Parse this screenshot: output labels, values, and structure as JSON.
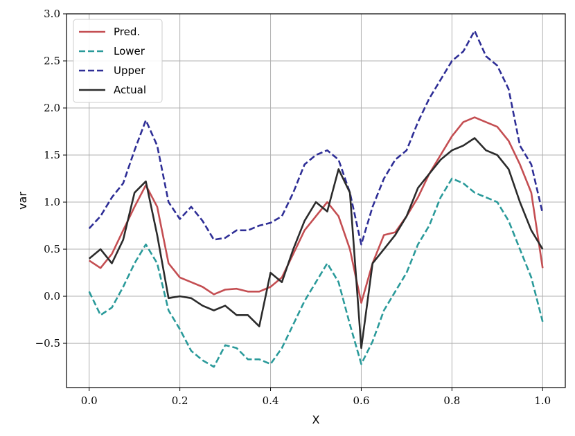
{
  "chart_data": {
    "type": "line",
    "title": "",
    "xlabel": "X",
    "ylabel": "var",
    "xlim": [
      -0.05,
      1.05
    ],
    "ylim": [
      -0.97,
      3.0
    ],
    "xticks": [
      0.0,
      0.2,
      0.4,
      0.6,
      0.8,
      1.0
    ],
    "xtick_labels": [
      "0.0",
      "0.2",
      "0.4",
      "0.6",
      "0.8",
      "1.0"
    ],
    "yticks": [
      -0.5,
      0.0,
      0.5,
      1.0,
      1.5,
      2.0,
      2.5,
      3.0
    ],
    "ytick_labels": [
      "−0.5",
      "0.0",
      "0.5",
      "1.0",
      "1.5",
      "2.0",
      "2.5",
      "3.0"
    ],
    "grid": true,
    "legend_position": "top-left",
    "x": [
      0.0,
      0.025,
      0.05,
      0.075,
      0.1,
      0.125,
      0.15,
      0.175,
      0.2,
      0.225,
      0.25,
      0.275,
      0.3,
      0.325,
      0.35,
      0.375,
      0.4,
      0.425,
      0.45,
      0.475,
      0.5,
      0.525,
      0.55,
      0.575,
      0.6,
      0.625,
      0.65,
      0.675,
      0.7,
      0.725,
      0.75,
      0.775,
      0.8,
      0.825,
      0.85,
      0.875,
      0.9,
      0.925,
      0.95,
      0.975,
      1.0
    ],
    "series": [
      {
        "name": "Pred.",
        "color": "#c44e52",
        "style": "solid",
        "values": [
          0.38,
          0.3,
          0.45,
          0.7,
          0.95,
          1.18,
          0.95,
          0.35,
          0.2,
          0.15,
          0.1,
          0.02,
          0.07,
          0.08,
          0.05,
          0.05,
          0.1,
          0.2,
          0.45,
          0.7,
          0.85,
          1.0,
          0.85,
          0.5,
          -0.07,
          0.35,
          0.65,
          0.68,
          0.85,
          1.05,
          1.3,
          1.5,
          1.7,
          1.85,
          1.9,
          1.85,
          1.8,
          1.65,
          1.4,
          1.1,
          0.3
        ]
      },
      {
        "name": "Lower",
        "color": "#2a9a9a",
        "style": "dashed",
        "values": [
          0.05,
          -0.2,
          -0.12,
          0.1,
          0.35,
          0.55,
          0.35,
          -0.15,
          -0.35,
          -0.58,
          -0.68,
          -0.75,
          -0.52,
          -0.55,
          -0.67,
          -0.67,
          -0.72,
          -0.55,
          -0.3,
          -0.05,
          0.15,
          0.35,
          0.15,
          -0.3,
          -0.72,
          -0.48,
          -0.15,
          0.05,
          0.25,
          0.55,
          0.75,
          1.05,
          1.25,
          1.2,
          1.1,
          1.05,
          1.0,
          0.8,
          0.5,
          0.2,
          -0.27
        ]
      },
      {
        "name": "Upper",
        "color": "#2e2e96",
        "style": "dashed",
        "values": [
          0.72,
          0.85,
          1.05,
          1.2,
          1.55,
          1.87,
          1.6,
          1.0,
          0.82,
          0.95,
          0.8,
          0.6,
          0.62,
          0.7,
          0.7,
          0.75,
          0.78,
          0.85,
          1.1,
          1.4,
          1.5,
          1.55,
          1.45,
          1.1,
          0.55,
          0.95,
          1.25,
          1.45,
          1.55,
          1.85,
          2.1,
          2.3,
          2.5,
          2.6,
          2.82,
          2.55,
          2.45,
          2.2,
          1.6,
          1.4,
          0.88
        ]
      },
      {
        "name": "Actual",
        "color": "#2b2b2b",
        "style": "solid",
        "values": [
          0.4,
          0.5,
          0.35,
          0.6,
          1.1,
          1.22,
          0.65,
          -0.02,
          0.0,
          -0.02,
          -0.1,
          -0.15,
          -0.1,
          -0.2,
          -0.2,
          -0.32,
          0.25,
          0.15,
          0.5,
          0.8,
          1.0,
          0.9,
          1.35,
          1.1,
          -0.55,
          0.35,
          0.5,
          0.65,
          0.85,
          1.15,
          1.3,
          1.45,
          1.55,
          1.6,
          1.68,
          1.55,
          1.5,
          1.35,
          1.0,
          0.7,
          0.5
        ]
      }
    ]
  }
}
